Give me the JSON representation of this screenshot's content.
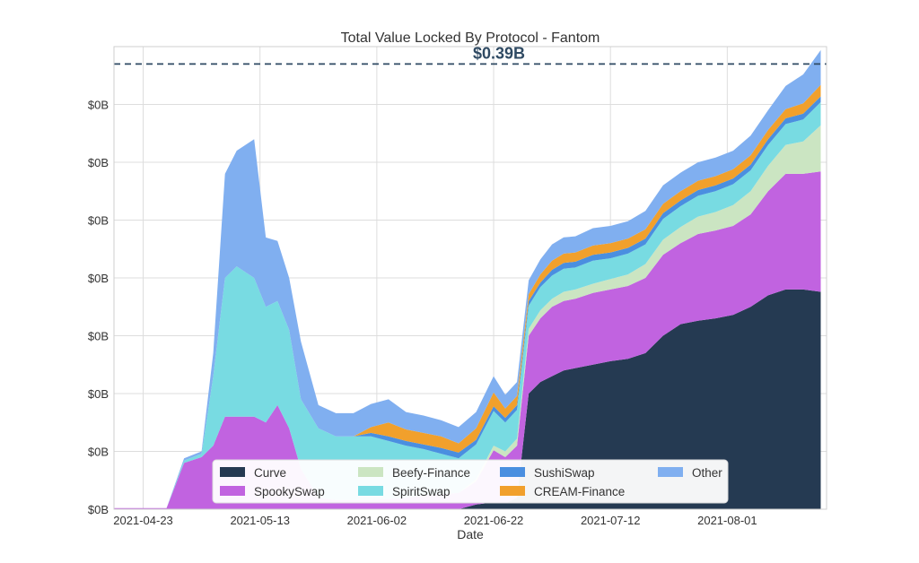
{
  "chart_data": {
    "type": "area",
    "stacked": true,
    "title": "Total Value Locked By Protocol - Fantom",
    "annotation": "$0.39B",
    "xlabel": "Date",
    "ylabel": "",
    "xlim": [
      "2021-04-18",
      "2021-08-18"
    ],
    "ylim": [
      0,
      0.4
    ],
    "x_ticks": [
      "2021-04-23",
      "2021-05-13",
      "2021-06-02",
      "2021-06-22",
      "2021-07-12",
      "2021-08-01"
    ],
    "y_ticks": [
      0,
      0.05,
      0.1,
      0.15,
      0.2,
      0.25,
      0.3,
      0.35
    ],
    "y_tick_label": "$0B",
    "reference_line": 0.385,
    "grid": true,
    "legend_position": "bottom-center",
    "x": [
      "2021-04-18",
      "2021-04-21",
      "2021-04-24",
      "2021-04-27",
      "2021-04-30",
      "2021-05-03",
      "2021-05-05",
      "2021-05-07",
      "2021-05-09",
      "2021-05-12",
      "2021-05-14",
      "2021-05-16",
      "2021-05-18",
      "2021-05-20",
      "2021-05-23",
      "2021-05-26",
      "2021-05-29",
      "2021-06-01",
      "2021-06-04",
      "2021-06-07",
      "2021-06-10",
      "2021-06-13",
      "2021-06-16",
      "2021-06-19",
      "2021-06-22",
      "2021-06-24",
      "2021-06-26",
      "2021-06-28",
      "2021-06-30",
      "2021-07-02",
      "2021-07-04",
      "2021-07-06",
      "2021-07-09",
      "2021-07-12",
      "2021-07-15",
      "2021-07-18",
      "2021-07-21",
      "2021-07-24",
      "2021-07-27",
      "2021-07-30",
      "2021-08-02",
      "2021-08-05",
      "2021-08-08",
      "2021-08-11",
      "2021-08-14",
      "2021-08-17"
    ],
    "series": [
      {
        "name": "Curve",
        "color": "#253a52",
        "values": [
          0,
          0,
          0,
          0,
          0,
          0,
          0,
          0,
          0,
          0,
          0,
          0,
          0,
          0,
          0,
          0,
          0,
          0,
          0,
          0,
          0,
          0,
          0,
          0.004,
          0.006,
          0.005,
          0.01,
          0.1,
          0.11,
          0.115,
          0.12,
          0.122,
          0.125,
          0.128,
          0.13,
          0.135,
          0.15,
          0.16,
          0.163,
          0.165,
          0.168,
          0.175,
          0.185,
          0.19,
          0.19,
          0.188
        ]
      },
      {
        "name": "SpookySwap",
        "color": "#c163e0",
        "values": [
          0.001,
          0.001,
          0.001,
          0.001,
          0.04,
          0.045,
          0.055,
          0.08,
          0.08,
          0.08,
          0.075,
          0.09,
          0.07,
          0.035,
          0.01,
          0.008,
          0.008,
          0.008,
          0.009,
          0.01,
          0.012,
          0.013,
          0.014,
          0.02,
          0.045,
          0.04,
          0.045,
          0.05,
          0.055,
          0.06,
          0.06,
          0.06,
          0.062,
          0.062,
          0.063,
          0.065,
          0.07,
          0.07,
          0.075,
          0.076,
          0.077,
          0.08,
          0.09,
          0.1,
          0.1,
          0.104
        ]
      },
      {
        "name": "Beefy-Finance",
        "color": "#cbe5c2",
        "values": [
          0,
          0,
          0,
          0,
          0,
          0,
          0,
          0,
          0,
          0,
          0,
          0,
          0,
          0,
          0,
          0,
          0,
          0,
          0,
          0,
          0,
          0,
          0,
          0.002,
          0.004,
          0.005,
          0.006,
          0.006,
          0.007,
          0.007,
          0.008,
          0.008,
          0.008,
          0.009,
          0.01,
          0.012,
          0.013,
          0.014,
          0.015,
          0.016,
          0.018,
          0.02,
          0.022,
          0.025,
          0.028,
          0.04
        ]
      },
      {
        "name": "SpiritSwap",
        "color": "#78dbe2",
        "values": [
          0,
          0,
          0,
          0,
          0.002,
          0.003,
          0.06,
          0.12,
          0.13,
          0.12,
          0.1,
          0.09,
          0.085,
          0.06,
          0.06,
          0.055,
          0.055,
          0.055,
          0.05,
          0.045,
          0.04,
          0.035,
          0.03,
          0.03,
          0.03,
          0.025,
          0.025,
          0.02,
          0.02,
          0.02,
          0.02,
          0.019,
          0.02,
          0.018,
          0.018,
          0.017,
          0.018,
          0.018,
          0.018,
          0.018,
          0.018,
          0.018,
          0.018,
          0.018,
          0.019,
          0.02
        ]
      },
      {
        "name": "SushiSwap",
        "color": "#4a8fe0",
        "values": [
          0,
          0,
          0,
          0,
          0,
          0,
          0,
          0,
          0,
          0,
          0,
          0,
          0,
          0,
          0,
          0,
          0,
          0.003,
          0.004,
          0.004,
          0.004,
          0.005,
          0.005,
          0.004,
          0.004,
          0.004,
          0.004,
          0.004,
          0.004,
          0.005,
          0.005,
          0.005,
          0.005,
          0.005,
          0.005,
          0.005,
          0.005,
          0.005,
          0.005,
          0.005,
          0.005,
          0.005,
          0.005,
          0.005,
          0.005,
          0.005
        ]
      },
      {
        "name": "CREAM-Finance",
        "color": "#f1a02c",
        "values": [
          0,
          0,
          0,
          0,
          0,
          0,
          0,
          0,
          0,
          0,
          0,
          0,
          0,
          0,
          0,
          0,
          0,
          0.005,
          0.012,
          0.01,
          0.01,
          0.01,
          0.008,
          0.01,
          0.012,
          0.008,
          0.008,
          0.006,
          0.007,
          0.008,
          0.008,
          0.008,
          0.008,
          0.008,
          0.008,
          0.008,
          0.008,
          0.008,
          0.008,
          0.008,
          0.008,
          0.008,
          0.008,
          0.008,
          0.009,
          0.01
        ]
      },
      {
        "name": "Other",
        "color": "#80aff0",
        "values": [
          0,
          0,
          0,
          0,
          0.002,
          0.002,
          0.02,
          0.09,
          0.1,
          0.12,
          0.06,
          0.052,
          0.045,
          0.05,
          0.02,
          0.02,
          0.02,
          0.02,
          0.02,
          0.015,
          0.015,
          0.014,
          0.014,
          0.014,
          0.014,
          0.012,
          0.012,
          0.012,
          0.013,
          0.014,
          0.014,
          0.014,
          0.015,
          0.015,
          0.015,
          0.016,
          0.016,
          0.016,
          0.016,
          0.016,
          0.016,
          0.017,
          0.017,
          0.02,
          0.025,
          0.03
        ]
      }
    ]
  }
}
